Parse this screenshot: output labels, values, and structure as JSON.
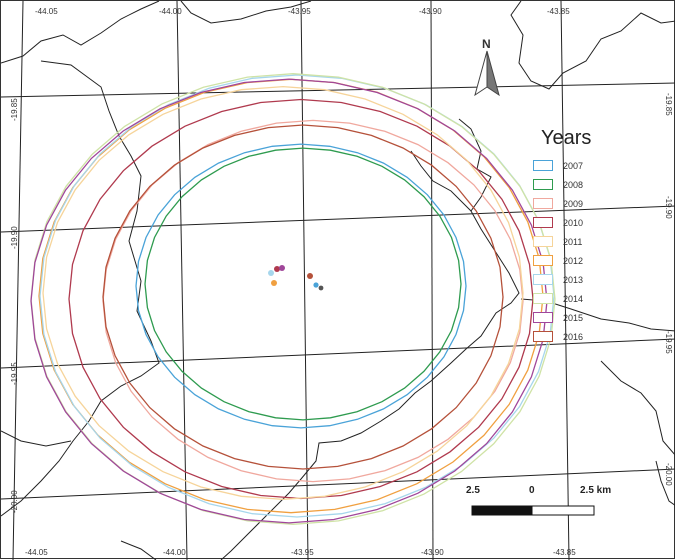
{
  "map": {
    "legend_title": "Years",
    "years": [
      {
        "label": "2007",
        "color": "#4aa3d8"
      },
      {
        "label": "2008",
        "color": "#2e9b4f"
      },
      {
        "label": "2009",
        "color": "#f0a89e"
      },
      {
        "label": "2010",
        "color": "#b03a4e"
      },
      {
        "label": "2011",
        "color": "#f6d49a"
      },
      {
        "label": "2012",
        "color": "#f0a040"
      },
      {
        "label": "2013",
        "color": "#a6d6ec"
      },
      {
        "label": "2014",
        "color": "#cfe3a6"
      },
      {
        "label": "2015",
        "color": "#a0469a"
      },
      {
        "label": "2016",
        "color": "#b5513a"
      }
    ],
    "longitude_labels": [
      "-44.05",
      "-44.00",
      "-43.95",
      "-43.90",
      "-43.85"
    ],
    "latitude_labels": [
      "-19.85",
      "-19.90",
      "-19.95",
      "-20.00"
    ],
    "north_label": "N",
    "scale": {
      "left": "2.5",
      "middle": "0",
      "right": "2.5 km"
    }
  }
}
